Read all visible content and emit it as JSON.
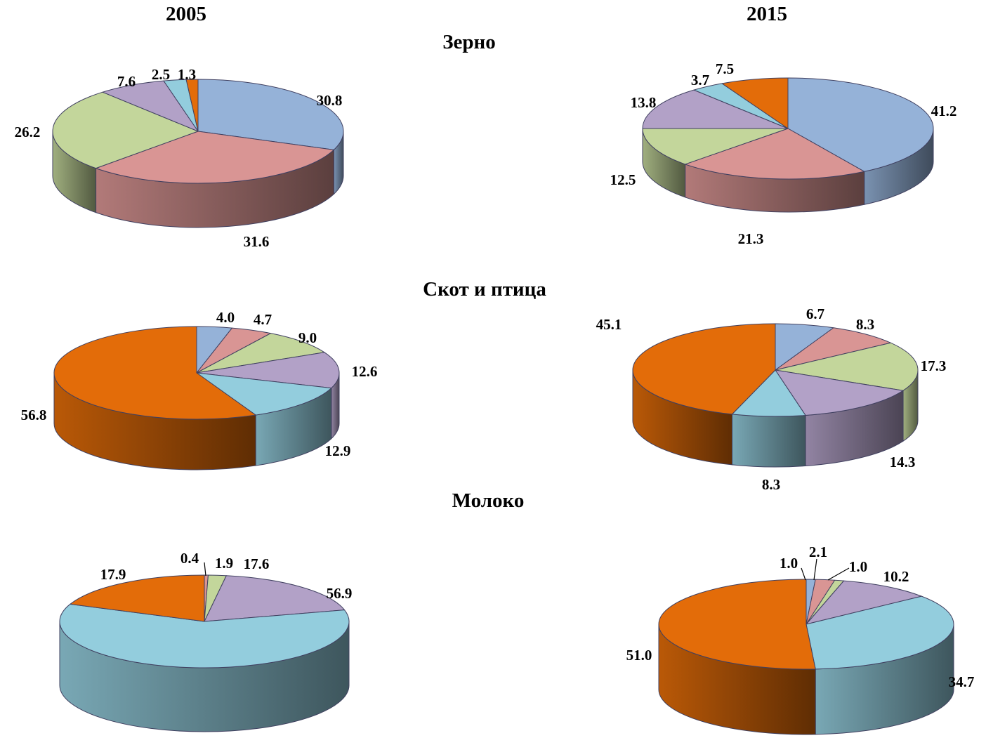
{
  "years": [
    "2005",
    "2015"
  ],
  "sections": [
    "Зерно",
    "Скот и птица",
    "Молоко"
  ],
  "slice_colors": [
    "#95B2D8",
    "#D99594",
    "#C3D69B",
    "#B2A1C7",
    "#93CDDD",
    "#E36C09"
  ],
  "chart_data": [
    {
      "type": "pie",
      "title": "Зерно",
      "year": "2005",
      "values": [
        30.8,
        31.6,
        26.2,
        7.6,
        2.5,
        1.3
      ],
      "data_labels": [
        "30.8",
        "31.6",
        "26.2",
        "7.6",
        "2.5",
        "1.3"
      ],
      "three_d": true
    },
    {
      "type": "pie",
      "title": "Зерно",
      "year": "2015",
      "values": [
        41.2,
        21.3,
        12.5,
        13.8,
        3.7,
        7.5
      ],
      "data_labels": [
        "41.2",
        "21.3",
        "12.5",
        "13.8",
        "3.7",
        "7.5"
      ],
      "three_d": true
    },
    {
      "type": "pie",
      "title": "Скот и птица",
      "year": "2005",
      "values": [
        4.0,
        4.7,
        9.0,
        12.6,
        12.9,
        56.8
      ],
      "data_labels": [
        "4.0",
        "4.7",
        "9.0",
        "12.6",
        "12.9",
        "56.8"
      ],
      "three_d": true
    },
    {
      "type": "pie",
      "title": "Скот и птица",
      "year": "2015",
      "values": [
        6.7,
        8.3,
        17.3,
        14.3,
        8.3,
        45.1
      ],
      "data_labels": [
        "6.7",
        "8.3",
        "17.3",
        "14.3",
        "8.3",
        "45.1"
      ],
      "three_d": true
    },
    {
      "type": "pie",
      "title": "Молоко",
      "year": "2005",
      "values": [
        0.0,
        0.4,
        1.9,
        17.6,
        56.9,
        17.9
      ],
      "data_labels": [
        "",
        "0.4",
        "1.9",
        "17.6",
        "56.9",
        "17.9"
      ],
      "three_d": true
    },
    {
      "type": "pie",
      "title": "Молоко",
      "year": "2015",
      "values": [
        1.0,
        2.1,
        1.0,
        10.2,
        34.7,
        51.0
      ],
      "data_labels": [
        "1.0",
        "2.1",
        "1.0",
        "10.2",
        "34.7",
        "51.0"
      ],
      "three_d": true
    }
  ]
}
